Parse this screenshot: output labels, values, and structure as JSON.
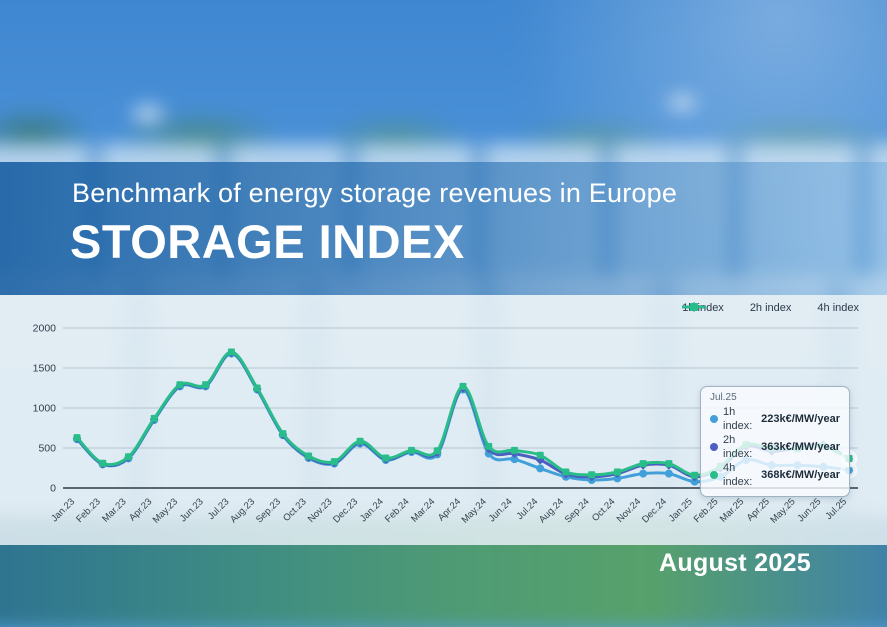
{
  "header": {
    "subtitle": "Benchmark of energy storage revenues in Europe",
    "title": "STORAGE INDEX"
  },
  "footer": {
    "date_label": "August 2025"
  },
  "chart_data": {
    "type": "line",
    "unit": "k€/MW/year",
    "x_labels": [
      "Jan.23",
      "Feb.23",
      "Mar.23",
      "Apr.23",
      "May.23",
      "Jun.23",
      "Jul.23",
      "Aug.23",
      "Sep.23",
      "Oct.23",
      "Nov.23",
      "Dec.23",
      "Jan.24",
      "Feb.24",
      "Mar.24",
      "Apr.24",
      "May.24",
      "Jun.24",
      "Jul.24",
      "Aug.24",
      "Sep.24",
      "Oct.24",
      "Nov.24",
      "Dec.24",
      "Jan.25",
      "Feb.25",
      "Mar.25",
      "Apr.25",
      "May.25",
      "Jun.25",
      "Jul.25"
    ],
    "ylim": [
      0,
      2000
    ],
    "yticks": [
      "0",
      "500",
      "1000",
      "1500",
      "2000"
    ],
    "grid": true,
    "legend_position": "top-right",
    "series": [
      {
        "name": "1h index",
        "color": "#41a0d9",
        "marker": "circle",
        "values": [
          610,
          295,
          370,
          850,
          1270,
          1270,
          1680,
          1230,
          660,
          375,
          305,
          555,
          350,
          450,
          420,
          1230,
          430,
          360,
          245,
          140,
          100,
          120,
          180,
          180,
          80,
          140,
          350,
          285,
          285,
          265,
          223
        ]
      },
      {
        "name": "2h index",
        "color": "#4a5fc0",
        "marker": "diamond",
        "values": [
          620,
          300,
          380,
          860,
          1280,
          1280,
          1690,
          1240,
          670,
          385,
          315,
          570,
          360,
          460,
          445,
          1250,
          490,
          430,
          350,
          175,
          140,
          180,
          285,
          285,
          140,
          250,
          520,
          460,
          500,
          540,
          363
        ]
      },
      {
        "name": "4h index",
        "color": "#29bd8a",
        "marker": "square",
        "values": [
          630,
          310,
          390,
          870,
          1290,
          1290,
          1700,
          1250,
          680,
          400,
          330,
          585,
          375,
          470,
          465,
          1270,
          520,
          470,
          410,
          200,
          165,
          200,
          305,
          305,
          160,
          270,
          540,
          495,
          490,
          525,
          368
        ]
      }
    ]
  },
  "tooltip": {
    "title": "Jul.25",
    "rows": [
      {
        "label": "1h index:",
        "value": "223k€/MW/year",
        "color": "#41a0d9"
      },
      {
        "label": "2h index:",
        "value": "363k€/MW/year",
        "color": "#4a5fc0"
      },
      {
        "label": "4h index:",
        "value": "368k€/MW/year",
        "color": "#29bd8a"
      }
    ]
  }
}
